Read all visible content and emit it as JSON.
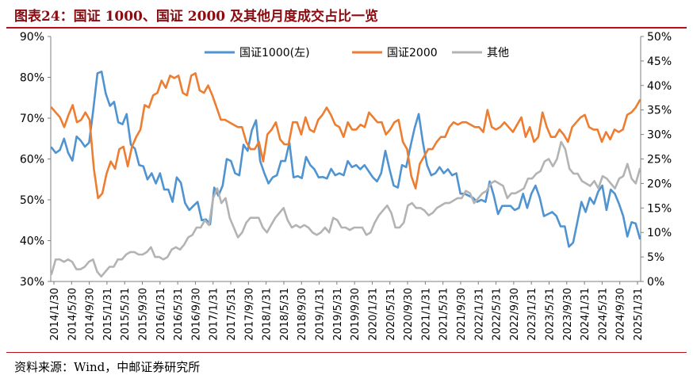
{
  "header": {
    "title": "图表24：国证 1000、国证 2000 及其他月度成交占比一览"
  },
  "footer": {
    "source": "资料来源：Wind，中邮证券研究所"
  },
  "colors": {
    "series_1000": "#4f94d0",
    "series_2000": "#ed7d31",
    "series_other": "#b3b3b3",
    "accent": "#b5121b"
  },
  "chart_data": {
    "type": "line",
    "title": "国证 1000、国证 2000 及其他月度成交占比一览",
    "x_tick_labels": [
      "2014/1/30",
      "2014/5/30",
      "2014/9/30",
      "2015/1/31",
      "2015/5/31",
      "2015/9/30",
      "2016/1/31",
      "2016/5/31",
      "2016/9/30",
      "2017/1/31",
      "2017/5/31",
      "2017/9/30",
      "2018/1/31",
      "2018/5/31",
      "2018/9/30",
      "2019/1/31",
      "2019/5/31",
      "2019/9/30",
      "2020/1/31",
      "2020/5/31",
      "2020/9/30",
      "2021/1/31",
      "2021/5/31",
      "2021/9/30",
      "2022/1/31",
      "2022/5/31",
      "2022/9/30",
      "2023/1/31",
      "2023/5/31",
      "2023/9/30",
      "2024/1/31",
      "2024/5/31",
      "2024/9/30",
      "2025/1/31"
    ],
    "y_left": {
      "range": [
        30,
        90
      ],
      "ticks": [
        "30%",
        "40%",
        "50%",
        "60%",
        "70%",
        "80%",
        "90%"
      ]
    },
    "y_right": {
      "range": [
        0,
        50
      ],
      "ticks": [
        "0%",
        "5%",
        "10%",
        "15%",
        "20%",
        "25%",
        "30%",
        "35%",
        "40%",
        "45%",
        "50%"
      ]
    },
    "legend": {
      "position": "top-center",
      "labels": [
        "国证1000(左)",
        "国证2000",
        "其他"
      ]
    },
    "grid": false,
    "series": [
      {
        "name": "国证1000(左)",
        "axis": "left",
        "values": [
          62.8,
          61.5,
          62.2,
          65,
          61.5,
          59.6,
          65.5,
          64.5,
          63,
          64,
          72,
          81,
          81.4,
          76,
          73,
          74,
          69,
          68.5,
          71,
          63.5,
          62.5,
          58.5,
          58.2,
          55,
          56.5,
          54,
          56.5,
          52.5,
          52.5,
          49.5,
          55.5,
          54.2,
          49.2,
          47.5,
          48.5,
          49.5,
          45,
          45.2,
          44,
          53,
          51,
          53.5,
          60,
          59.5,
          56.5,
          56,
          63.5,
          62,
          67,
          69.5,
          59.5,
          56.5,
          54,
          55.5,
          56,
          59.5,
          59.5,
          64,
          55.5,
          55.8,
          55.3,
          60.5,
          58.5,
          57.5,
          55.5,
          55.6,
          55.2,
          57.6,
          56,
          56.5,
          56,
          59.5,
          58,
          58.5,
          57.5,
          58.5,
          57,
          55.5,
          54.5,
          56.5,
          62,
          57.5,
          53.5,
          53,
          58.5,
          58,
          63,
          67.5,
          71,
          64,
          58.5,
          56,
          56.5,
          58,
          56.5,
          57.5,
          56,
          56.5,
          51.5,
          51.5,
          51,
          50.5,
          49.5,
          50,
          49.5,
          54.5,
          51,
          46.5,
          48.5,
          48.5,
          48.5,
          47.5,
          48,
          51.5,
          48,
          51.5,
          53.5,
          50.5,
          46,
          46.5,
          47,
          46,
          43.5,
          43.5,
          38.5,
          39.5,
          44.5,
          49.5,
          47,
          50.5,
          49,
          52,
          53.5,
          47.5,
          52.5,
          51.5,
          49,
          46,
          41,
          44.5,
          44.2,
          40.5
        ]
      },
      {
        "name": "国证2000",
        "axis": "right",
        "values": [
          35.5,
          34.5,
          33.5,
          31.5,
          34,
          36,
          32.5,
          33,
          34.5,
          33,
          23,
          17,
          18,
          22,
          24.5,
          23,
          27,
          27.5,
          23.5,
          27.5,
          29.5,
          31,
          36,
          35.5,
          38,
          38.5,
          41,
          39.5,
          42,
          41.5,
          42,
          38.5,
          38,
          42,
          42.5,
          39,
          38.5,
          40,
          38,
          35.5,
          33,
          33,
          32.5,
          32,
          31.5,
          31.5,
          28.5,
          27,
          27,
          28.5,
          24.5,
          30,
          31,
          32.5,
          29,
          28,
          28,
          32.5,
          32.5,
          30,
          33.5,
          31,
          30.5,
          33,
          34,
          35.5,
          34,
          32,
          31.5,
          29.5,
          32.5,
          31,
          31,
          32,
          31.5,
          34.5,
          33.5,
          32.5,
          32.5,
          30,
          31,
          32.5,
          33,
          28.5,
          27,
          21.5,
          19,
          24,
          25.5,
          27,
          27,
          28.5,
          29.5,
          29.5,
          31.5,
          32.5,
          32,
          32.5,
          32.5,
          32,
          31.5,
          31.5,
          30.5,
          35,
          31.5,
          31,
          31.5,
          32.5,
          31.5,
          30.5,
          32,
          33.5,
          29.5,
          31.5,
          28.5,
          29.5,
          34.5,
          31.5,
          29.5,
          29.5,
          31,
          30,
          28.5,
          31.5,
          32.5,
          33.5,
          34,
          31.5,
          31,
          31,
          28.5,
          30.5,
          29,
          31,
          30.5,
          31,
          34,
          34.5,
          35.5,
          37
        ]
      },
      {
        "name": "其他",
        "axis": "right",
        "values": [
          1.5,
          4.5,
          4.5,
          4,
          4.5,
          4,
          2.5,
          2.5,
          3,
          4,
          4.5,
          2,
          1,
          2,
          3,
          3,
          4.5,
          4.5,
          5.5,
          6,
          6,
          5.5,
          5.5,
          6,
          7,
          5,
          5,
          4.5,
          5,
          6.5,
          7,
          6.5,
          7.5,
          9,
          9.5,
          11,
          11,
          12.5,
          11.5,
          17,
          19,
          16,
          17,
          13,
          11,
          9,
          10,
          12,
          13,
          13,
          13,
          11,
          10,
          11.5,
          13,
          14,
          15,
          12.5,
          11,
          11.5,
          11,
          11.5,
          11,
          10,
          9.5,
          10,
          11,
          10,
          13,
          12.5,
          11,
          11,
          10.5,
          11,
          11,
          11,
          9.5,
          10,
          12,
          13.5,
          14.5,
          15.5,
          14,
          11,
          11,
          12,
          15.5,
          16,
          15,
          15,
          14.5,
          13.5,
          14,
          15,
          15.5,
          16,
          16,
          16.5,
          17,
          17,
          18.5,
          18,
          16,
          17,
          18,
          18.5,
          20,
          20.5,
          20,
          19.5,
          17,
          18,
          18,
          18.5,
          19,
          21,
          21,
          22,
          22.5,
          24.5,
          25,
          23.5,
          25,
          28.5,
          27,
          23,
          22,
          22,
          20.5,
          20,
          19.5,
          20.5,
          19,
          21.5,
          21,
          20,
          19,
          21,
          21.5,
          24,
          21,
          20,
          23
        ]
      }
    ]
  }
}
